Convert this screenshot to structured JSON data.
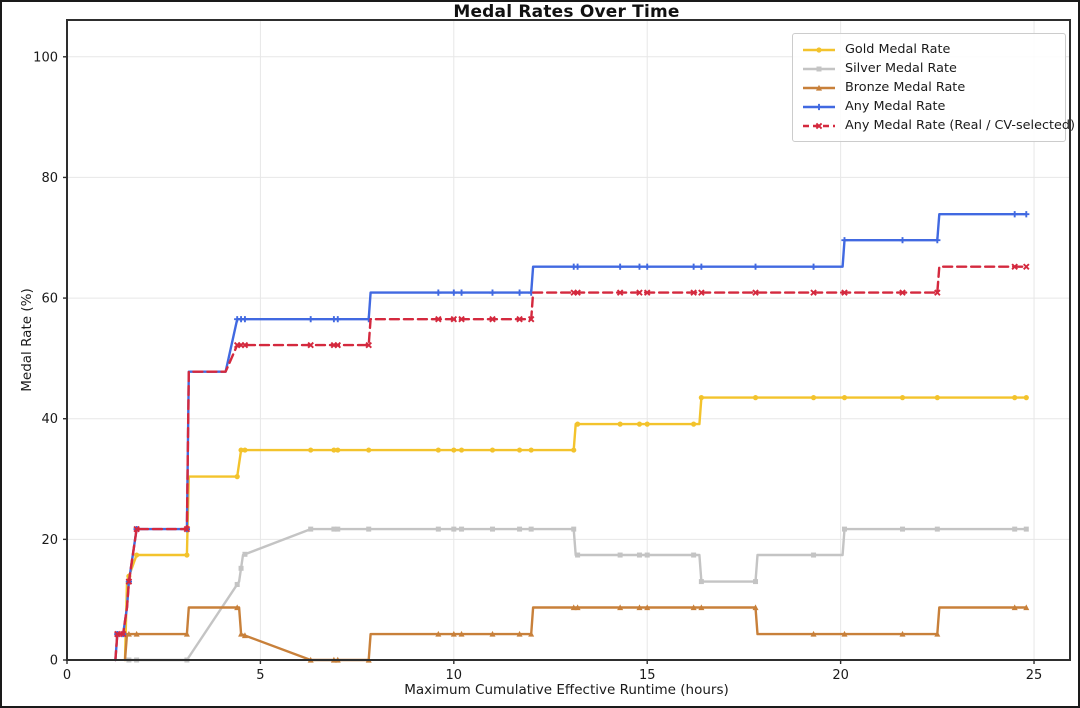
{
  "chart_data": {
    "type": "line",
    "title": "Medal Rates Over Time",
    "xlabel": "Maximum Cumulative Effective Runtime (hours)",
    "ylabel": "Medal Rate (%)",
    "xlim": [
      0,
      25.93
    ],
    "ylim": [
      0,
      106.1
    ],
    "xticks": [
      0,
      5,
      10,
      15,
      20,
      25
    ],
    "yticks": [
      0,
      20,
      40,
      60,
      80,
      100
    ],
    "grid": true,
    "grid_color": "#e7e7e7",
    "spine_color": "#2e2e2e",
    "legend_position": "upper right",
    "marker_hours": [
      1.3,
      1.45,
      1.6,
      1.8,
      3.1,
      4.4,
      4.5,
      4.6,
      6.3,
      6.9,
      7.0,
      7.8,
      9.6,
      10.0,
      10.2,
      11.0,
      11.7,
      12.0,
      13.1,
      13.2,
      14.3,
      14.8,
      15.0,
      16.2,
      16.4,
      17.8,
      19.3,
      20.1,
      21.6,
      22.5,
      24.5,
      24.8
    ],
    "series": [
      {
        "name": "Gold Medal Rate",
        "color": "#F3C32C",
        "dash": null,
        "marker": "circle",
        "points": [
          [
            1.5,
            0
          ],
          [
            1.55,
            13.0
          ],
          [
            1.8,
            17.4
          ],
          [
            3.1,
            17.4
          ],
          [
            3.15,
            30.4
          ],
          [
            4.4,
            30.4
          ],
          [
            4.5,
            34.8
          ],
          [
            13.1,
            34.8
          ],
          [
            13.15,
            39.1
          ],
          [
            16.35,
            39.1
          ],
          [
            16.4,
            43.5
          ],
          [
            24.8,
            43.5
          ]
        ]
      },
      {
        "name": "Silver Medal Rate",
        "color": "#C4C4C4",
        "dash": null,
        "marker": "square",
        "points": [
          [
            1.6,
            0
          ],
          [
            3.1,
            0
          ],
          [
            4.45,
            13.0
          ],
          [
            4.55,
            17.4
          ],
          [
            6.3,
            21.7
          ],
          [
            13.1,
            21.7
          ],
          [
            13.15,
            17.4
          ],
          [
            16.35,
            17.4
          ],
          [
            16.4,
            13.0
          ],
          [
            17.8,
            13.0
          ],
          [
            17.85,
            17.4
          ],
          [
            20.05,
            17.4
          ],
          [
            20.1,
            21.7
          ],
          [
            24.8,
            21.7
          ]
        ]
      },
      {
        "name": "Bronze Medal Rate",
        "color": "#C8803A",
        "dash": null,
        "marker": "triangle",
        "points": [
          [
            1.5,
            0
          ],
          [
            1.55,
            4.3
          ],
          [
            3.1,
            4.3
          ],
          [
            3.15,
            8.7
          ],
          [
            4.45,
            8.7
          ],
          [
            4.5,
            4.3
          ],
          [
            6.3,
            0
          ],
          [
            7.8,
            0
          ],
          [
            7.85,
            4.3
          ],
          [
            12.0,
            4.3
          ],
          [
            12.05,
            8.7
          ],
          [
            17.8,
            8.7
          ],
          [
            17.85,
            4.3
          ],
          [
            22.5,
            4.3
          ],
          [
            22.55,
            8.7
          ],
          [
            24.8,
            8.7
          ]
        ]
      },
      {
        "name": "Any Medal Rate",
        "color": "#4169E1",
        "dash": null,
        "marker": "plus",
        "points": [
          [
            1.25,
            0
          ],
          [
            1.3,
            4.3
          ],
          [
            1.45,
            4.3
          ],
          [
            1.55,
            8.7
          ],
          [
            1.6,
            13.0
          ],
          [
            1.8,
            21.7
          ],
          [
            3.1,
            21.7
          ],
          [
            3.15,
            47.8
          ],
          [
            4.1,
            47.8
          ],
          [
            4.4,
            56.5
          ],
          [
            7.8,
            56.5
          ],
          [
            7.85,
            60.9
          ],
          [
            12.0,
            60.9
          ],
          [
            12.05,
            65.2
          ],
          [
            20.05,
            65.2
          ],
          [
            20.1,
            69.6
          ],
          [
            22.5,
            69.6
          ],
          [
            22.55,
            73.9
          ],
          [
            24.8,
            73.9
          ]
        ]
      },
      {
        "name": "Any Medal Rate (Real / CV-selected)",
        "color": "#D4293E",
        "dash": [
          9,
          5
        ],
        "marker": "x",
        "points": [
          [
            1.25,
            0
          ],
          [
            1.3,
            4.3
          ],
          [
            1.45,
            4.3
          ],
          [
            1.55,
            8.7
          ],
          [
            1.6,
            13.0
          ],
          [
            1.8,
            21.7
          ],
          [
            3.1,
            21.7
          ],
          [
            3.15,
            47.8
          ],
          [
            4.1,
            47.8
          ],
          [
            4.4,
            52.2
          ],
          [
            7.8,
            52.2
          ],
          [
            7.85,
            56.5
          ],
          [
            12.0,
            56.5
          ],
          [
            12.05,
            60.9
          ],
          [
            22.5,
            60.9
          ],
          [
            22.55,
            65.2
          ],
          [
            24.8,
            65.2
          ]
        ]
      }
    ]
  }
}
